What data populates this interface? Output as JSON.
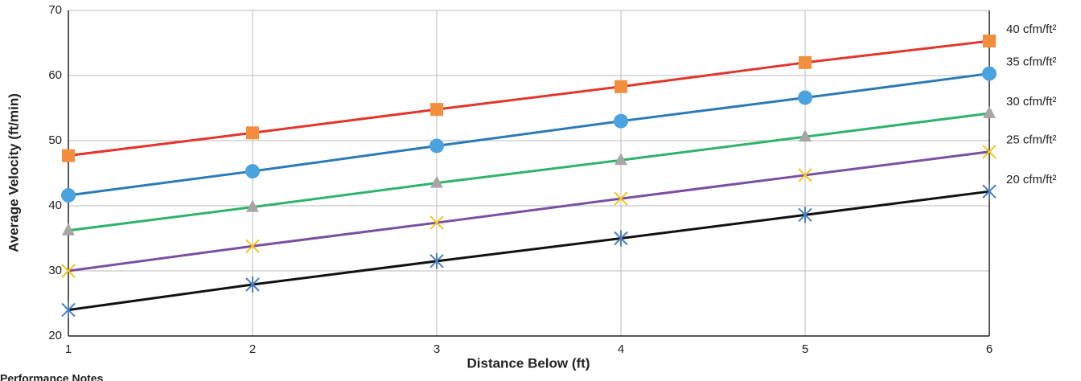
{
  "chart_data": {
    "type": "line",
    "x_label": "Distance Below (ft)",
    "y_label": "Average Velocity (ft/min)",
    "x": [
      1,
      2,
      3,
      4,
      5,
      6
    ],
    "xlim": [
      1,
      6
    ],
    "xticks": [
      1,
      2,
      3,
      4,
      5,
      6
    ],
    "ylim": [
      20,
      70
    ],
    "yticks": [
      20,
      30,
      40,
      50,
      60,
      70
    ],
    "grid": true,
    "series": [
      {
        "name": "40 cfm/ft²",
        "color": "#e2352b",
        "marker": "square",
        "marker_color": "#f28e3c",
        "values": [
          47.7,
          51.2,
          54.8,
          58.3,
          62.0,
          65.3
        ]
      },
      {
        "name": "35 cfm/ft²",
        "color": "#2a7ab8",
        "marker": "circle",
        "marker_color": "#4aa3df",
        "values": [
          41.6,
          45.3,
          49.2,
          53.0,
          56.6,
          60.3
        ]
      },
      {
        "name": "30 cfm/ft²",
        "color": "#2eb36b",
        "marker": "triangle",
        "marker_color": "#a6a6a6",
        "values": [
          36.2,
          39.8,
          43.5,
          47.0,
          50.6,
          54.2
        ]
      },
      {
        "name": "25 cfm/ft²",
        "color": "#7b4fa0",
        "marker": "x",
        "marker_color": "#f5c518",
        "values": [
          30.0,
          33.8,
          37.4,
          41.1,
          44.7,
          48.3
        ]
      },
      {
        "name": "20 cfm/ft²",
        "color": "#111111",
        "marker": "asterisk",
        "marker_color": "#4a7fc0",
        "values": [
          24.0,
          27.9,
          31.5,
          35.0,
          38.6,
          42.2
        ]
      }
    ]
  },
  "footer": {
    "heading": "Performance Notes"
  }
}
